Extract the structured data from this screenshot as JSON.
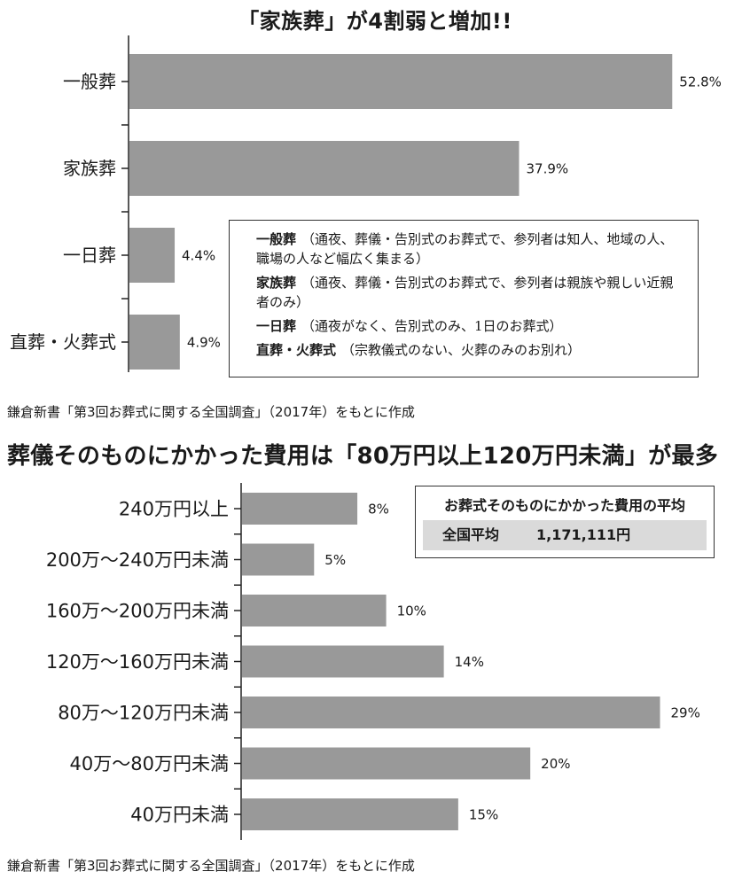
{
  "colors": {
    "bar": "#999999",
    "axis": "#222222",
    "text": "#1a1a1a"
  },
  "chart_data": [
    {
      "type": "bar",
      "orientation": "horizontal",
      "title": "「家族葬」が4割弱と増加!!",
      "categories": [
        "一般葬",
        "家族葬",
        "一日葬",
        "直葬・火葬式"
      ],
      "values": [
        52.8,
        37.9,
        4.4,
        4.9
      ],
      "value_labels": [
        "52.8%",
        "37.9%",
        "4.4%",
        "4.9%"
      ],
      "xlim": [
        0,
        54.5
      ],
      "grid": false
    },
    {
      "type": "bar",
      "orientation": "horizontal",
      "title": "葬儀そのものにかかった費用は「80万円以上120万円未満」が最多",
      "categories": [
        "240万円以上",
        "200万～240万円未満",
        "160万～200万円未満",
        "120万～160万円未満",
        "80万～120万円未満",
        "40万～80万円未満",
        "40万円未満"
      ],
      "values": [
        8,
        5,
        10,
        14,
        29,
        20,
        15
      ],
      "value_labels": [
        "8%",
        "5%",
        "10%",
        "14%",
        "29%",
        "20%",
        "15%"
      ],
      "xlim": [
        0,
        29.4
      ],
      "grid": false
    }
  ],
  "legend1": {
    "items": [
      {
        "term": "一般葬",
        "desc": "（通夜、葬儀・告別式のお葬式で、参列者は知人、地域の人、職場の人など幅広く集まる）"
      },
      {
        "term": "家族葬",
        "desc": "（通夜、葬儀・告別式のお葬式で、参列者は親族や親しい近親者のみ）"
      },
      {
        "term": "一日葬",
        "desc": "（通夜がなく、告別式のみ、1日のお葬式）"
      },
      {
        "term": "直葬・火葬式",
        "desc": "（宗教儀式のない、火葬のみのお別れ）"
      }
    ]
  },
  "average": {
    "title": "お葬式そのものにかかった費用の平均",
    "label": "全国平均",
    "value": "1,171,111円"
  },
  "source1": "鎌倉新書「第3回お葬式に関する全国調査」（2017年）をもとに作成",
  "source2": "鎌倉新書「第3回お葬式に関する全国調査」（2017年）をもとに作成"
}
